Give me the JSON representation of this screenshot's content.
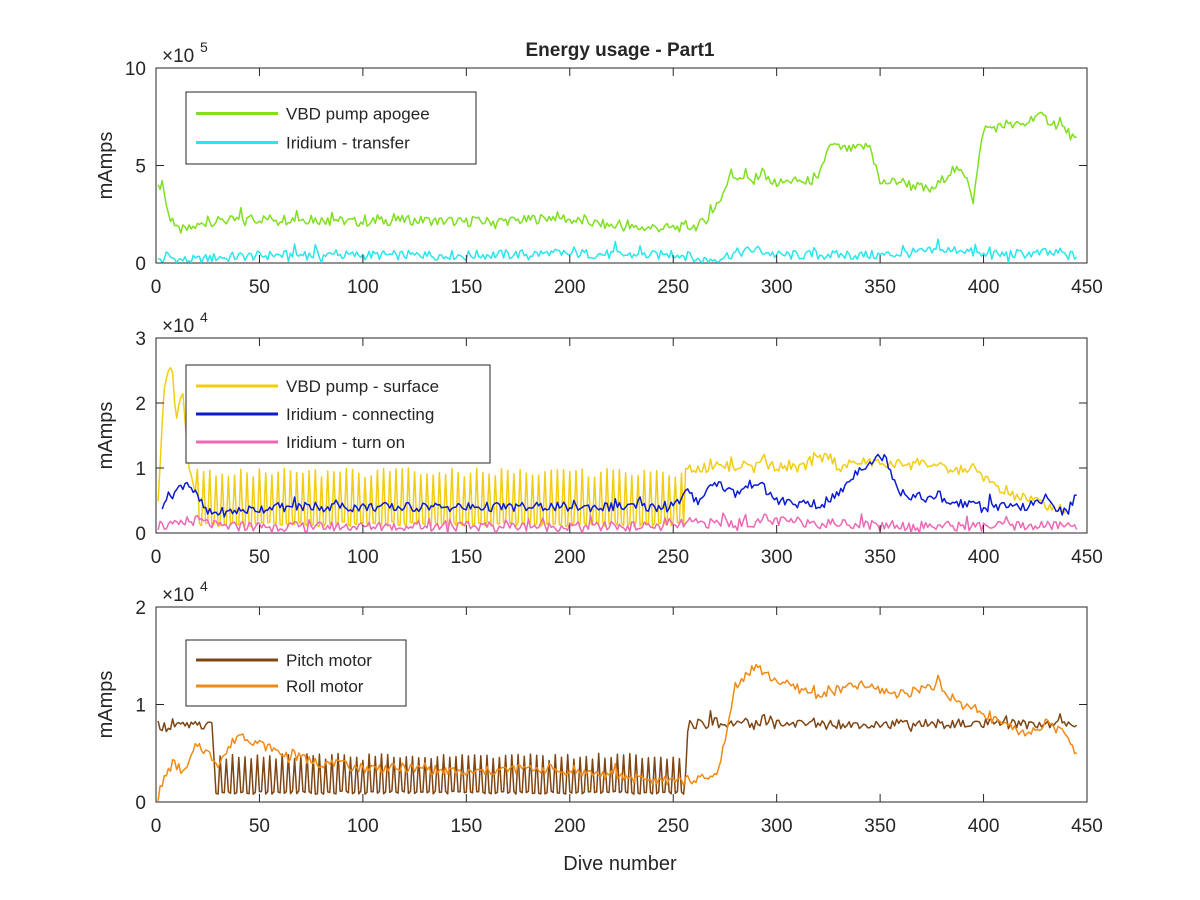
{
  "figure": {
    "title": "Energy usage - Part1",
    "xlabel": "Dive number"
  },
  "chart_data": [
    {
      "type": "line",
      "title": "Energy usage - Part1",
      "xlabel": "",
      "ylabel": "mAmps",
      "xlim": [
        0,
        450
      ],
      "ylim": [
        0,
        1000000
      ],
      "xticks": [
        0,
        50,
        100,
        150,
        200,
        250,
        300,
        350,
        400,
        450
      ],
      "xtick_labels": [
        "0",
        "50",
        "100",
        "150",
        "200",
        "250",
        "300",
        "350",
        "400",
        "450"
      ],
      "yticks": [
        0,
        500000,
        1000000
      ],
      "ytick_labels": [
        "0",
        "5",
        "10"
      ],
      "y_multiplier": "×10",
      "y_multiplier_exp": "5",
      "grid": false,
      "legend": "top-left",
      "series": [
        {
          "name": "VBD pump apogee",
          "color": "#7fe01f",
          "x": [
            1,
            3,
            6,
            10,
            15,
            25,
            40,
            60,
            80,
            100,
            120,
            150,
            180,
            195,
            200,
            215,
            230,
            250,
            262,
            270,
            278,
            285,
            300,
            310,
            320,
            325,
            335,
            345,
            350,
            360,
            375,
            385,
            392,
            395,
            400,
            410,
            420,
            425,
            430,
            440,
            445
          ],
          "y": [
            380000,
            420000,
            250000,
            170000,
            170000,
            210000,
            220000,
            230000,
            220000,
            210000,
            220000,
            210000,
            220000,
            240000,
            220000,
            200000,
            180000,
            180000,
            190000,
            260000,
            450000,
            440000,
            410000,
            420000,
            420000,
            600000,
            580000,
            600000,
            410000,
            420000,
            370000,
            480000,
            450000,
            320000,
            690000,
            700000,
            710000,
            760000,
            740000,
            680000,
            620000
          ]
        },
        {
          "name": "Iridium - transfer",
          "color": "#27e6ee",
          "x": [
            1,
            5,
            10,
            20,
            30,
            60,
            100,
            150,
            200,
            230,
            255,
            262,
            270,
            280,
            290,
            300,
            350,
            390,
            395,
            400,
            430,
            445
          ],
          "y": [
            10000,
            40000,
            15000,
            15000,
            30000,
            40000,
            40000,
            40000,
            50000,
            40000,
            40000,
            15000,
            20000,
            50000,
            70000,
            40000,
            40000,
            70000,
            50000,
            40000,
            50000,
            35000
          ]
        }
      ]
    },
    {
      "type": "line",
      "title": "",
      "xlabel": "",
      "ylabel": "mAmps",
      "xlim": [
        0,
        450
      ],
      "ylim": [
        0,
        30000
      ],
      "xticks": [
        0,
        50,
        100,
        150,
        200,
        250,
        300,
        350,
        400,
        450
      ],
      "xtick_labels": [
        "0",
        "50",
        "100",
        "150",
        "200",
        "250",
        "300",
        "350",
        "400",
        "450"
      ],
      "yticks": [
        0,
        10000,
        20000,
        30000
      ],
      "ytick_labels": [
        "0",
        "1",
        "2",
        "3"
      ],
      "y_multiplier": "×10",
      "y_multiplier_exp": "4",
      "grid": false,
      "legend": "top-left",
      "series": [
        {
          "name": "VBD pump - surface",
          "color": "#f2cd12",
          "x": [
            1,
            4,
            7,
            10,
            13,
            16,
            20,
            30,
            60,
            90,
            120,
            150,
            180,
            210,
            240,
            256,
            265,
            290,
            310,
            325,
            330,
            340,
            355,
            370,
            385,
            395,
            410,
            425,
            440
          ],
          "y": [
            5000,
            22000,
            26000,
            18000,
            22000,
            10000,
            6000,
            6000,
            6000,
            6000,
            6000,
            6000,
            6000,
            6000,
            6000,
            10000,
            10000,
            10500,
            10000,
            12000,
            10000,
            11000,
            10500,
            11000,
            9500,
            10000,
            6000,
            5000,
            3000
          ],
          "oscillation": {
            "from": 20,
            "to": 256,
            "low": 1000,
            "high": 10000,
            "period": 3
          }
        },
        {
          "name": "Iridium - connecting",
          "color": "#0a1bd2",
          "x": [
            3,
            8,
            15,
            25,
            60,
            100,
            150,
            200,
            250,
            256,
            262,
            270,
            280,
            290,
            300,
            320,
            330,
            340,
            352,
            360,
            380,
            400,
            420,
            430,
            440,
            445
          ],
          "y": [
            5000,
            6000,
            8000,
            3000,
            4000,
            4000,
            4000,
            4000,
            4000,
            6000,
            5000,
            8000,
            6000,
            8000,
            5000,
            4000,
            6000,
            10000,
            12000,
            6000,
            5000,
            4000,
            4000,
            5000,
            3000,
            6000
          ]
        },
        {
          "name": "Iridium - turn on",
          "color": "#ee68b6",
          "x": [
            1,
            10,
            20,
            30,
            60,
            100,
            150,
            200,
            250,
            256,
            280,
            300,
            330,
            350,
            400,
            445
          ],
          "y": [
            1000,
            1200,
            2000,
            1000,
            1000,
            1000,
            1000,
            1000,
            1000,
            1500,
            1500,
            1800,
            1500,
            1200,
            1000,
            1200
          ]
        }
      ]
    },
    {
      "type": "line",
      "title": "",
      "xlabel": "Dive number",
      "ylabel": "mAmps",
      "xlim": [
        0,
        450
      ],
      "ylim": [
        0,
        20000
      ],
      "xticks": [
        0,
        50,
        100,
        150,
        200,
        250,
        300,
        350,
        400,
        450
      ],
      "xtick_labels": [
        "0",
        "50",
        "100",
        "150",
        "200",
        "250",
        "300",
        "350",
        "400",
        "450"
      ],
      "yticks": [
        0,
        10000,
        20000
      ],
      "ytick_labels": [
        "0",
        "1",
        "2"
      ],
      "y_multiplier": "×10",
      "y_multiplier_exp": "4",
      "grid": false,
      "legend": "top-left",
      "series": [
        {
          "name": "Pitch motor",
          "color": "#7e4614",
          "x": [
            1,
            3,
            6,
            27,
            28,
            256,
            257,
            258,
            445
          ],
          "y": [
            8000,
            7800,
            7800,
            7800,
            3000,
            3000,
            7000,
            8000,
            8000
          ],
          "oscillation": {
            "from": 28,
            "to": 256,
            "low": 800,
            "high": 5000,
            "period": 3
          }
        },
        {
          "name": "Roll motor",
          "color": "#f08a16",
          "x": [
            1,
            3,
            8,
            14,
            20,
            30,
            40,
            50,
            60,
            70,
            80,
            100,
            120,
            150,
            180,
            200,
            230,
            250,
            270,
            275,
            280,
            290,
            295,
            305,
            320,
            340,
            360,
            375,
            390,
            400,
            420,
            430,
            440,
            445
          ],
          "y": [
            500,
            2000,
            4000,
            3000,
            6000,
            4000,
            7000,
            6000,
            5000,
            4500,
            4000,
            3500,
            3500,
            3000,
            3500,
            3200,
            2500,
            2000,
            2500,
            6000,
            12000,
            14000,
            13000,
            12000,
            11000,
            12000,
            11000,
            12000,
            10000,
            9000,
            7000,
            8000,
            7000,
            5000
          ]
        }
      ]
    }
  ]
}
